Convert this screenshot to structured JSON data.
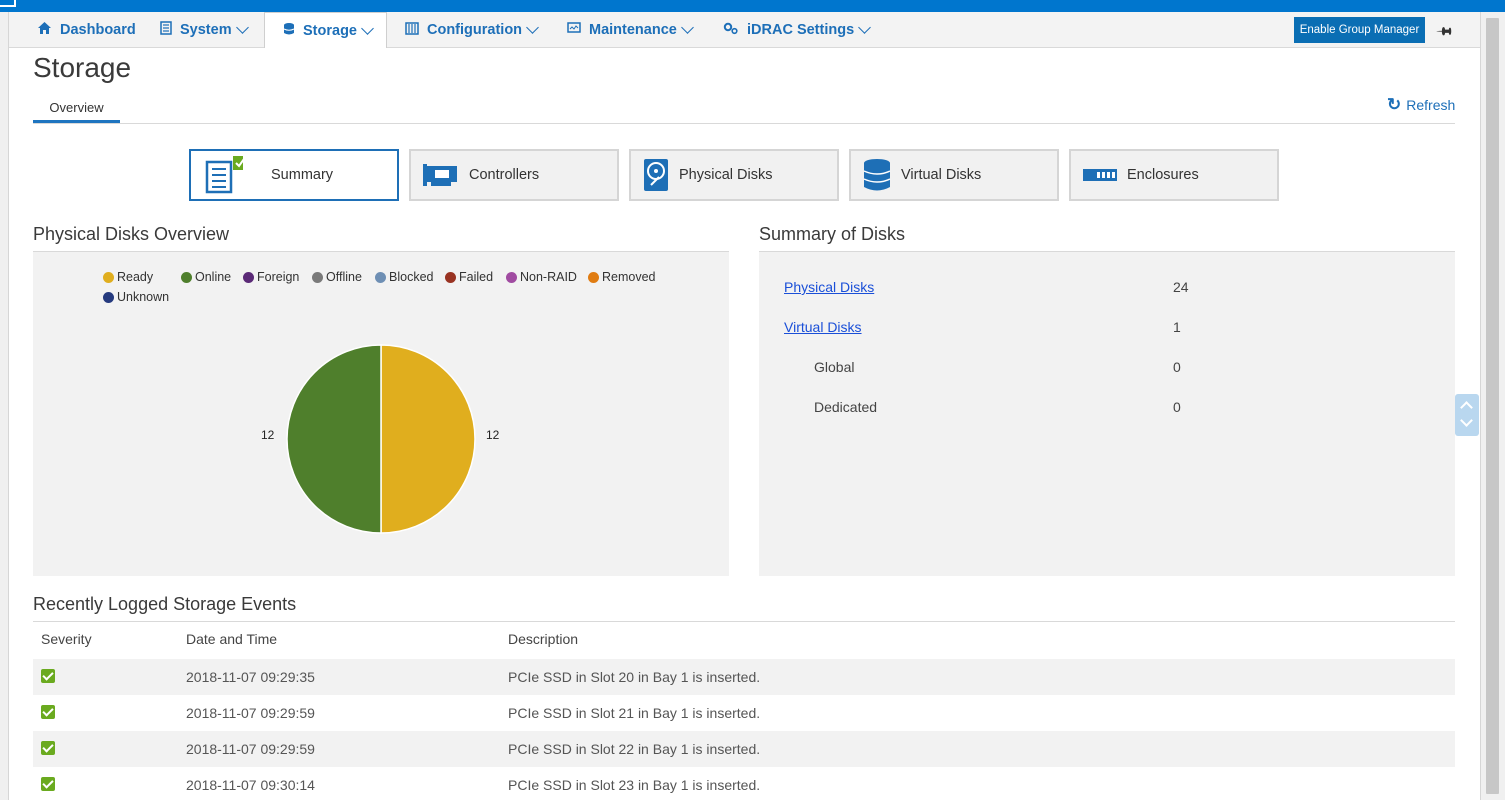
{
  "nav": {
    "items": [
      {
        "label": "Dashboard",
        "icon": "home-icon",
        "dropdown": false
      },
      {
        "label": "System",
        "icon": "server-icon",
        "dropdown": true
      },
      {
        "label": "Storage",
        "icon": "database-icon",
        "dropdown": true,
        "active": true
      },
      {
        "label": "Configuration",
        "icon": "config-icon",
        "dropdown": true
      },
      {
        "label": "Maintenance",
        "icon": "monitor-icon",
        "dropdown": true
      },
      {
        "label": "iDRAC Settings",
        "icon": "gears-icon",
        "dropdown": true
      }
    ],
    "enable_group_manager": "Enable Group Manager",
    "pin_icon": "pin-icon"
  },
  "page": {
    "title": "Storage",
    "subtab": "Overview",
    "refresh": "Refresh"
  },
  "categories": [
    {
      "label": "Summary",
      "icon": "summary-list-icon",
      "selected": true
    },
    {
      "label": "Controllers",
      "icon": "controller-card-icon"
    },
    {
      "label": "Physical Disks",
      "icon": "physical-disk-icon"
    },
    {
      "label": "Virtual Disks",
      "icon": "virtual-disk-icon"
    },
    {
      "label": "Enclosures",
      "icon": "enclosure-icon"
    }
  ],
  "physical_overview": {
    "title": "Physical Disks Overview",
    "legend": [
      {
        "label": "Ready",
        "color": "#e0ae1e"
      },
      {
        "label": "Online",
        "color": "#4f7f2c"
      },
      {
        "label": "Foreign",
        "color": "#5b2a77"
      },
      {
        "label": "Offline",
        "color": "#7a7a7a"
      },
      {
        "label": "Blocked",
        "color": "#6e8fb4"
      },
      {
        "label": "Failed",
        "color": "#993322"
      },
      {
        "label": "Non-RAID",
        "color": "#a04ba1"
      },
      {
        "label": "Removed",
        "color": "#e07c12"
      },
      {
        "label": "Unknown",
        "color": "#253a7e"
      }
    ]
  },
  "chart_data": {
    "type": "pie",
    "labels": [
      "Ready",
      "Online"
    ],
    "values": [
      12,
      12
    ],
    "colors": [
      "#e0ae1e",
      "#4f7f2c"
    ],
    "data_labels": [
      "12",
      "12"
    ]
  },
  "summary": {
    "title": "Summary of Disks",
    "rows": [
      {
        "label": "Physical Disks",
        "value": "24",
        "link": true
      },
      {
        "label": "Virtual Disks",
        "value": "1",
        "link": true
      },
      {
        "label": "Global",
        "value": "0",
        "link": false
      },
      {
        "label": "Dedicated",
        "value": "0",
        "link": false
      }
    ]
  },
  "events": {
    "title": "Recently Logged Storage Events",
    "columns": [
      "Severity",
      "Date and Time",
      "Description"
    ],
    "rows": [
      {
        "severity": "ok",
        "datetime": "2018-11-07 09:29:35",
        "description": "PCIe SSD in Slot 20 in Bay 1 is inserted."
      },
      {
        "severity": "ok",
        "datetime": "2018-11-07 09:29:59",
        "description": "PCIe SSD in Slot 21 in Bay 1 is inserted."
      },
      {
        "severity": "ok",
        "datetime": "2018-11-07 09:29:59",
        "description": "PCIe SSD in Slot 22 in Bay 1 is inserted."
      },
      {
        "severity": "ok",
        "datetime": "2018-11-07 09:30:14",
        "description": "PCIe SSD in Slot 23 in Bay 1 is inserted."
      }
    ]
  }
}
